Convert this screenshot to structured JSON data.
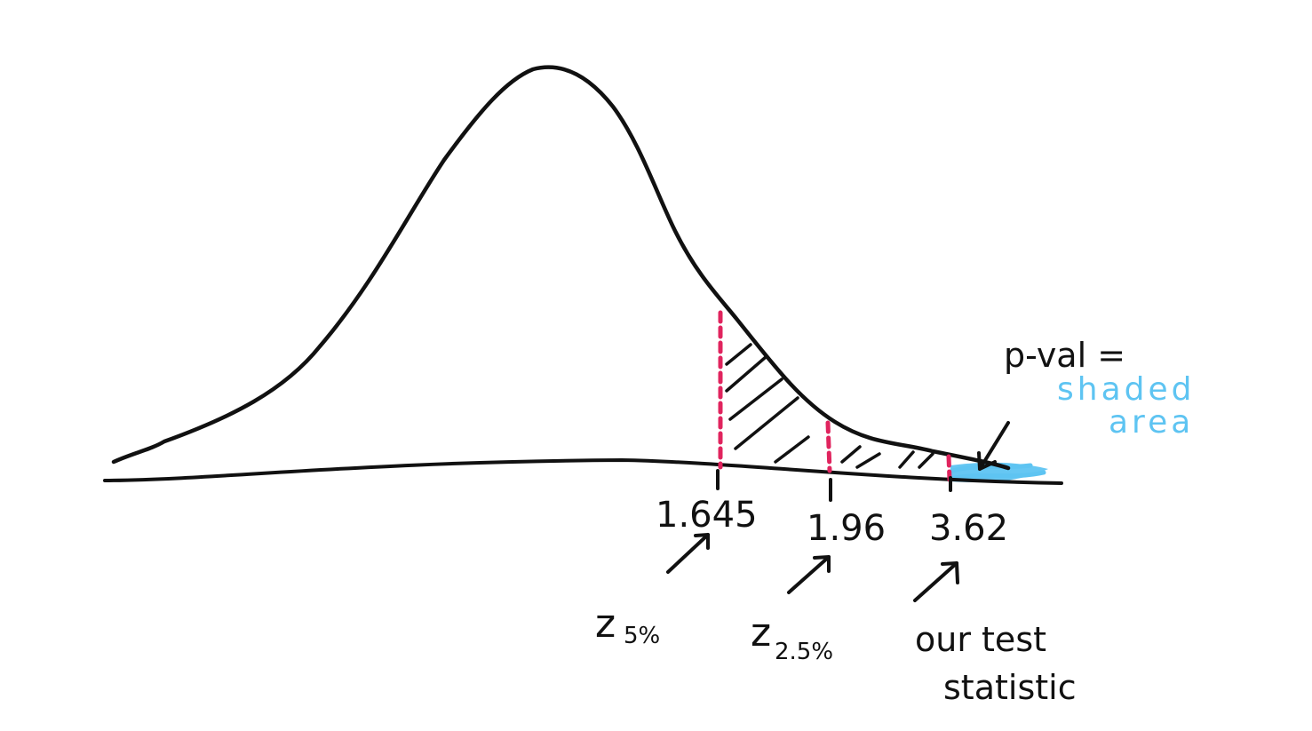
{
  "colors": {
    "ink": "#111111",
    "cutoff_dash": "#e0245e",
    "pvalue_shade": "#5ec4f2"
  },
  "ticks": [
    {
      "label": "1.645",
      "name": "tick-1645"
    },
    {
      "label": "1.96",
      "name": "tick-196"
    },
    {
      "label": "3.62",
      "name": "tick-362"
    }
  ],
  "annotations": {
    "z5": {
      "main": "z",
      "sub": "5%"
    },
    "z25": {
      "main": "z",
      "sub": "2.5%"
    },
    "test_stat_line1": "our test",
    "test_stat_line2": "statistic",
    "pval_line1": "p-val =",
    "pval_line2": "shaded",
    "pval_line3": "area"
  }
}
